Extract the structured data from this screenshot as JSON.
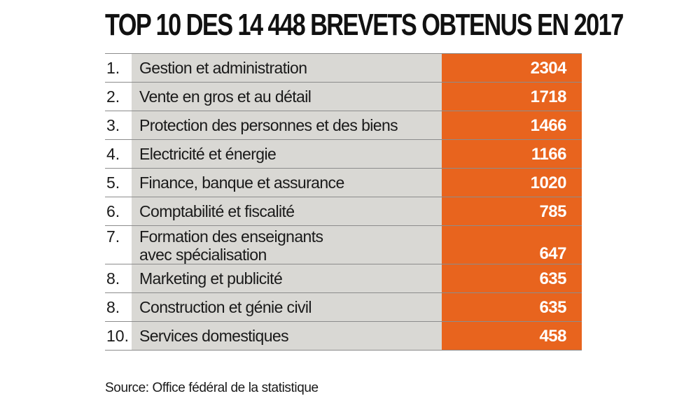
{
  "chart_data": {
    "type": "table",
    "title": "TOP 10 DES 14 448 BREVETS OBTENUS EN 2017",
    "rows": [
      {
        "rank": "1.",
        "label": "Gestion et administration",
        "value": 2304
      },
      {
        "rank": "2.",
        "label": "Vente en gros et au détail",
        "value": 1718
      },
      {
        "rank": "3.",
        "label": "Protection des personnes et des biens",
        "value": 1466
      },
      {
        "rank": "4.",
        "label": "Electricité et énergie",
        "value": 1166
      },
      {
        "rank": "5.",
        "label": "Finance, banque et assurance",
        "value": 1020
      },
      {
        "rank": "6.",
        "label": "Comptabilité et fiscalité",
        "value": 785
      },
      {
        "rank": "7.",
        "label": "Formation des enseignants\navec spécialisation",
        "value": 647
      },
      {
        "rank": "8.",
        "label": "Marketing et publicité",
        "value": 635
      },
      {
        "rank": "8.",
        "label": "Construction et génie civil",
        "value": 635
      },
      {
        "rank": "10.",
        "label": "Services domestiques",
        "value": 458
      }
    ],
    "source": "Source: Office fédéral de la statistique"
  },
  "colors": {
    "value_fill": "#e8641e",
    "label_fill": "#d9d8d4",
    "row_rule": "#8c8c8c"
  }
}
